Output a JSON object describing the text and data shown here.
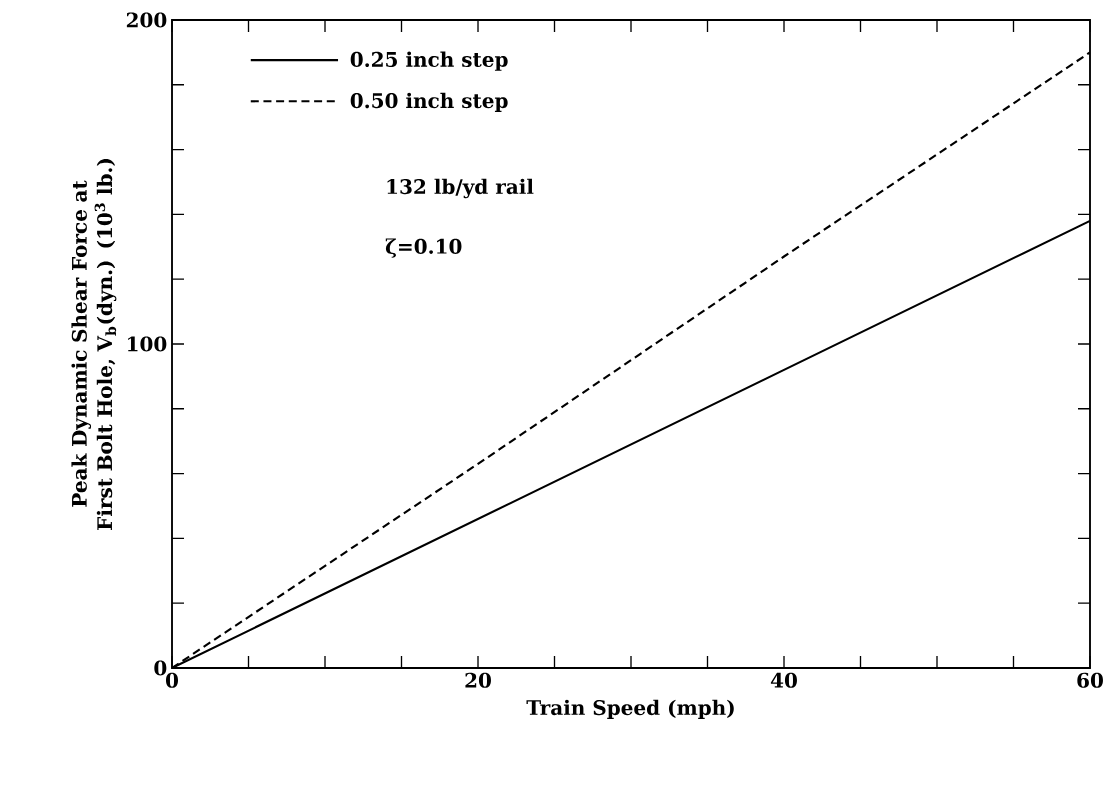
{
  "chart_data": {
    "type": "line",
    "xlabel": "Train Speed (mph)",
    "ylabel": "Peak Dynamic Shear Force at First Bolt Hole, V$_{b}$(dyn.) (10$^{3}$ lb.)",
    "x": [
      0,
      20,
      40,
      60
    ],
    "series": [
      {
        "name": "0.25 inch step",
        "color": "#000000",
        "line_style": "solid",
        "values": [
          0,
          46,
          92,
          138
        ]
      },
      {
        "name": "0.50 inch step",
        "color": "#000000",
        "line_style": "dashed",
        "values": [
          0,
          63,
          127,
          190
        ]
      }
    ],
    "annotations": [
      "132 lb/yd rail",
      "ζ=0.10"
    ],
    "xlim": [
      0,
      60
    ],
    "ylim": [
      0,
      200
    ],
    "xticks": [
      0,
      {
        "value": 5,
        "label": null
      },
      {
        "value": 10,
        "label": null
      },
      {
        "value": 15,
        "label": null
      },
      20,
      {
        "value": 25,
        "label": null
      },
      {
        "value": 30,
        "label": null
      },
      {
        "value": 35,
        "label": null
      },
      40,
      {
        "value": 45,
        "label": null
      },
      {
        "value": 50,
        "label": null
      },
      {
        "value": 55,
        "label": null
      },
      60
    ],
    "yticks": [
      0,
      {
        "value": 20,
        "label": null
      },
      {
        "value": 40,
        "label": null
      },
      {
        "value": 60,
        "label": null
      },
      {
        "value": 80,
        "label": null
      },
      100,
      {
        "value": 120,
        "label": null
      },
      {
        "value": 140,
        "label": null
      },
      {
        "value": 160,
        "label": null
      },
      {
        "value": 180,
        "label": null
      },
      200
    ],
    "grid": false,
    "legend": "top left",
    "marker": "none"
  }
}
